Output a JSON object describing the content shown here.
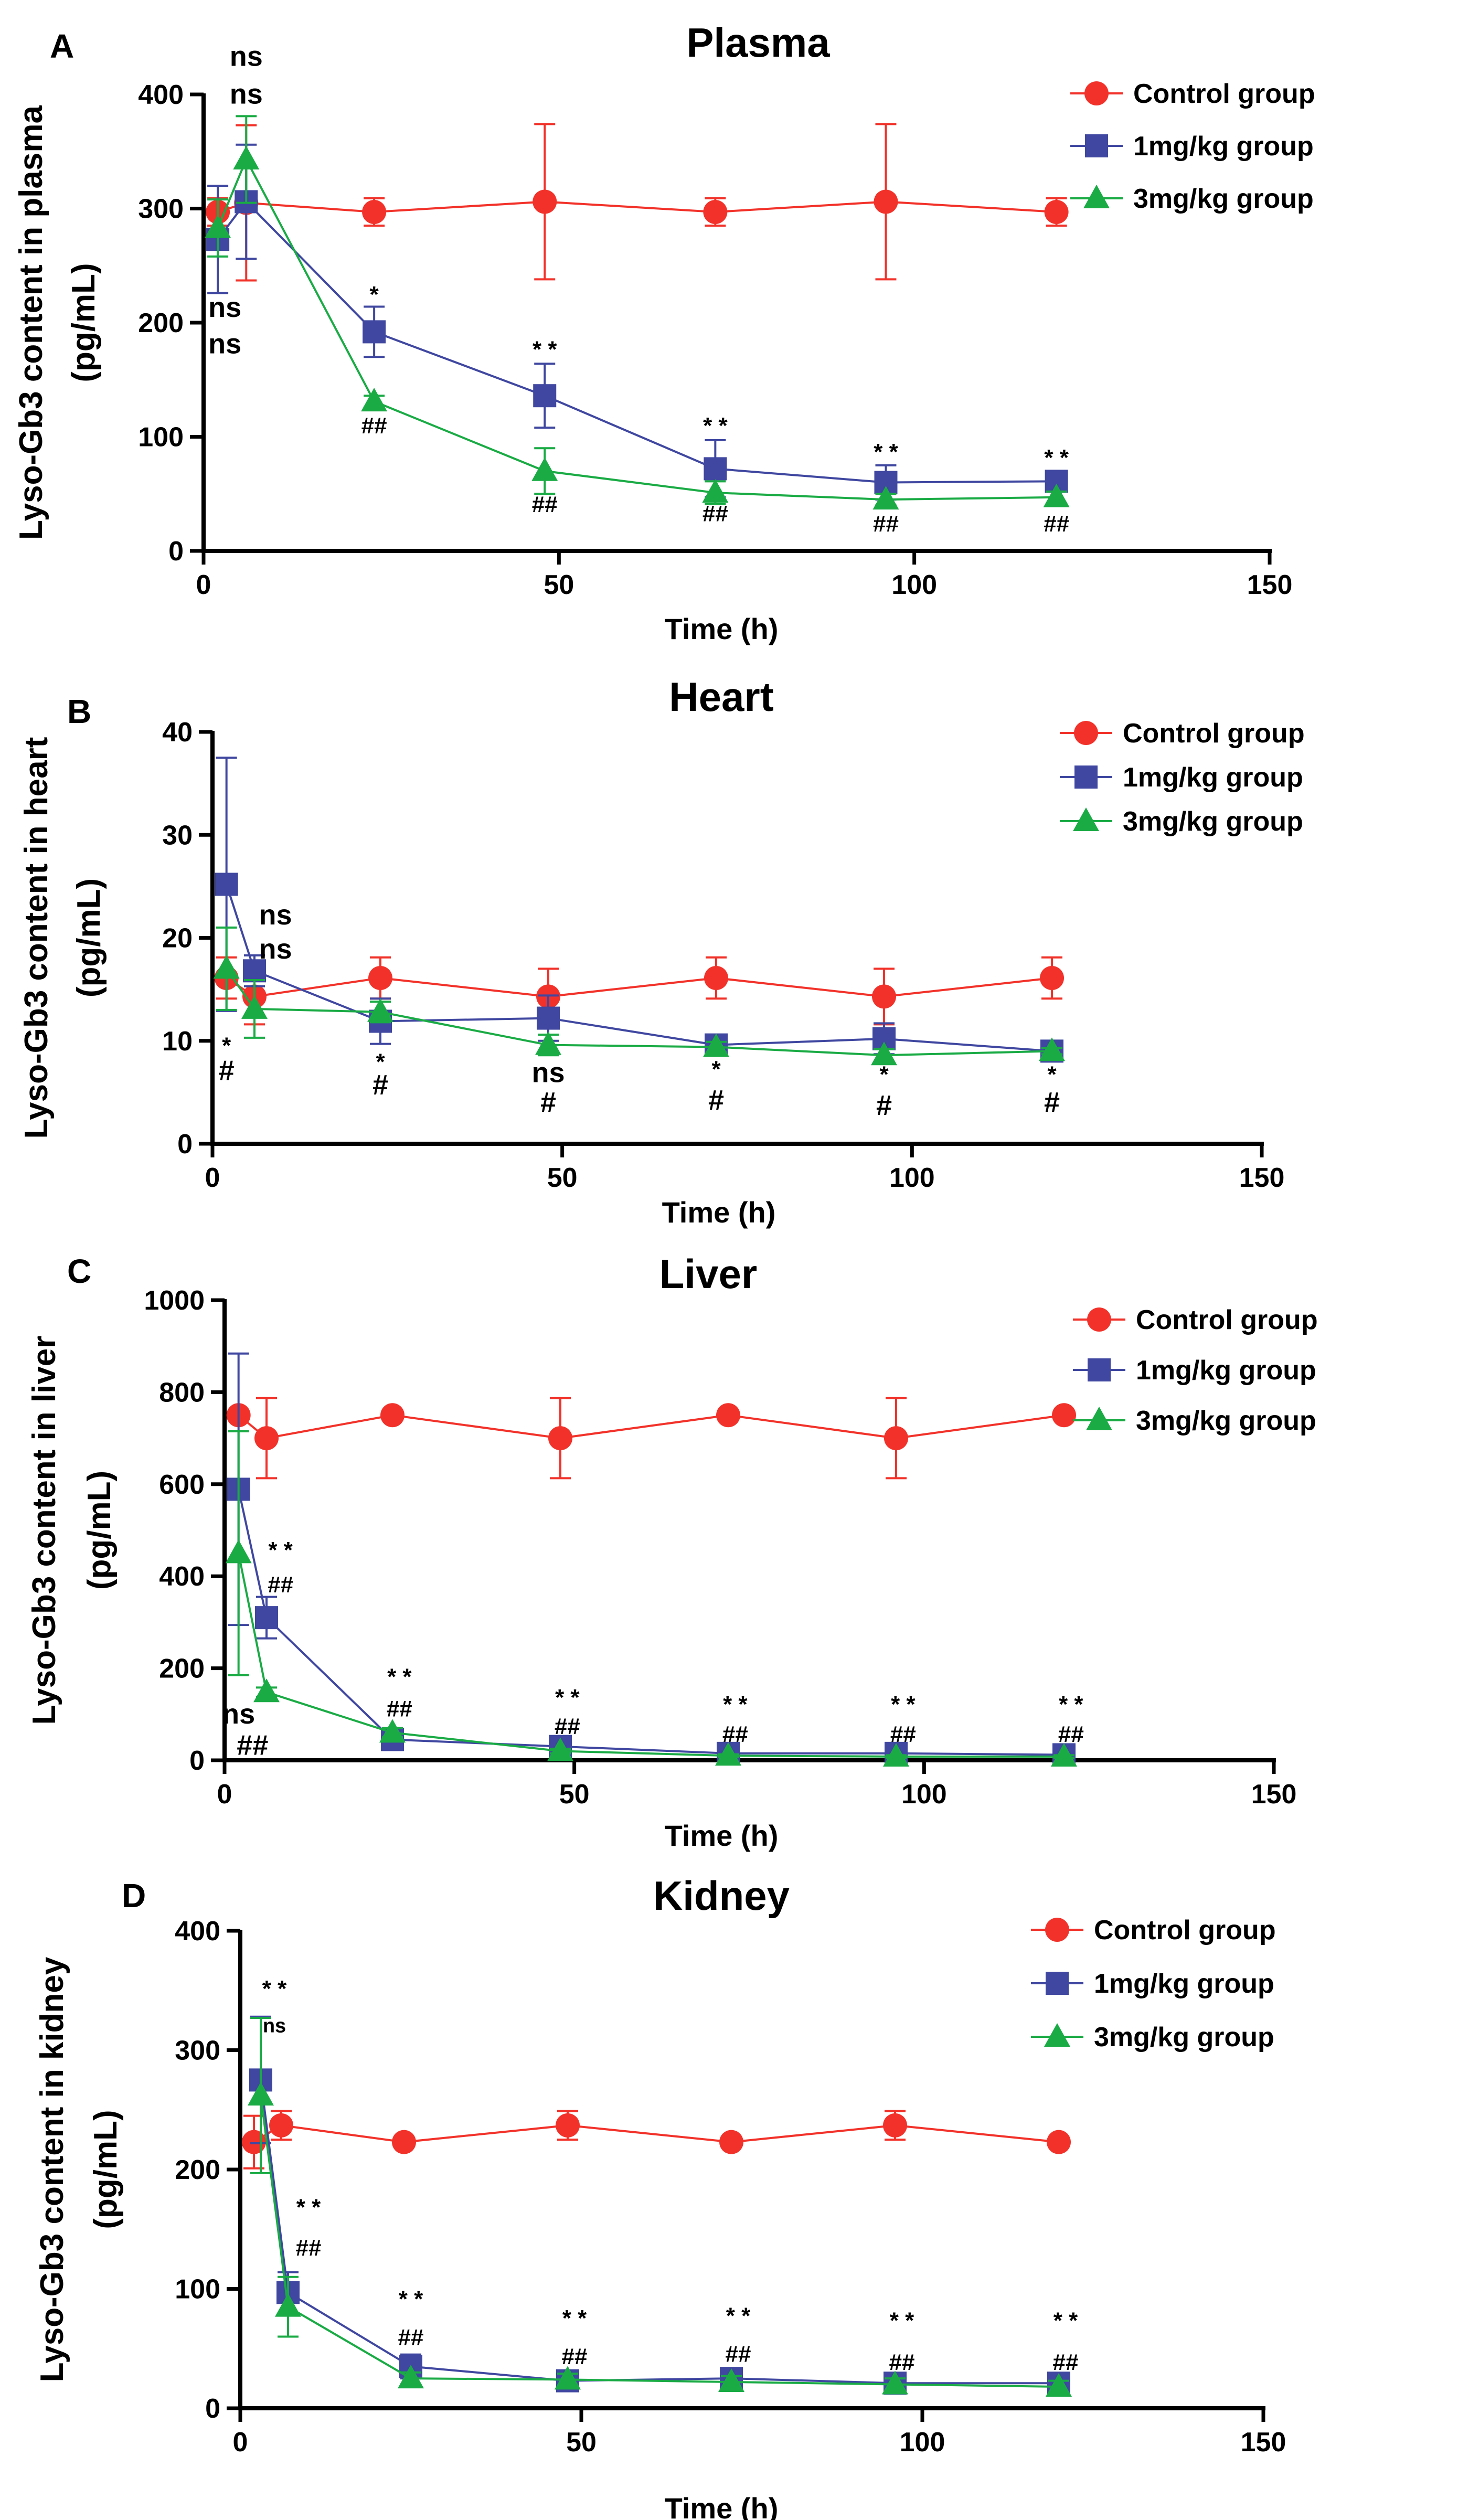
{
  "colors": {
    "control": "#f2322a",
    "dose1": "#3f47a0",
    "dose3": "#1aab45",
    "annot_dose1": "#2e2a6e",
    "annot_dose3": "#13a044",
    "axis": "#000000"
  },
  "legend_labels": [
    "Control group",
    "1mg/kg group",
    "3mg/kg group"
  ],
  "chart_data": [
    {
      "type": "line",
      "panel": "A",
      "title": "Plasma",
      "xlabel": "Time (h)",
      "ylabel": [
        "Lyso-Gb3 content in plasma",
        "(pg/mL)"
      ],
      "xlim": [
        0,
        150
      ],
      "ylim": [
        0,
        400
      ],
      "xticks": [
        0,
        50,
        100,
        150
      ],
      "yticks": [
        0,
        100,
        200,
        300,
        400
      ],
      "legend_position": "top-right",
      "series": [
        {
          "name": "Control group",
          "marker": "circle",
          "x": [
            2,
            6,
            24,
            48,
            72,
            96,
            120
          ],
          "y": [
            297,
            305,
            297,
            306,
            297,
            306,
            297
          ],
          "err": [
            12,
            68,
            12,
            68,
            12,
            68,
            12
          ]
        },
        {
          "name": "1mg/kg group",
          "marker": "square",
          "x": [
            2,
            6,
            24,
            48,
            72,
            96,
            120
          ],
          "y": [
            273,
            306,
            192,
            136,
            72,
            60,
            61
          ],
          "err": [
            47,
            50,
            22,
            28,
            25,
            15,
            5
          ]
        },
        {
          "name": "3mg/kg group",
          "marker": "triangle",
          "x": [
            2,
            6,
            24,
            48,
            72,
            96,
            120
          ],
          "y": [
            283,
            343,
            131,
            70,
            51,
            45,
            47
          ],
          "err": [
            25,
            38,
            5,
            20,
            10,
            5,
            5
          ]
        }
      ],
      "annotations": [
        {
          "text": "ns",
          "series": "1mg/kg group",
          "x": 6,
          "y": 425,
          "size": "large"
        },
        {
          "text": "ns",
          "series": "3mg/kg group",
          "x": 6,
          "y": 392,
          "size": "large"
        },
        {
          "text": "ns",
          "series": "1mg/kg group",
          "x": 3,
          "y": 205,
          "size": "large"
        },
        {
          "text": "ns",
          "series": "3mg/kg group",
          "x": 3,
          "y": 173,
          "size": "large"
        },
        {
          "text": "*",
          "series": "1mg/kg group",
          "x": 24,
          "y": 218,
          "size": "small"
        },
        {
          "text": "##",
          "series": "3mg/kg group",
          "x": 24,
          "y": 103,
          "size": "small"
        },
        {
          "text": "* *",
          "series": "1mg/kg group",
          "x": 48,
          "y": 170,
          "size": "small"
        },
        {
          "text": "##",
          "series": "3mg/kg group",
          "x": 48,
          "y": 34,
          "size": "small"
        },
        {
          "text": "* *",
          "series": "1mg/kg group",
          "x": 72,
          "y": 103,
          "size": "small"
        },
        {
          "text": "##",
          "series": "3mg/kg group",
          "x": 72,
          "y": 26,
          "size": "small"
        },
        {
          "text": "* *",
          "series": "1mg/kg group",
          "x": 96,
          "y": 80,
          "size": "small"
        },
        {
          "text": "##",
          "series": "3mg/kg group",
          "x": 96,
          "y": 17,
          "size": "small"
        },
        {
          "text": "* *",
          "series": "1mg/kg group",
          "x": 120,
          "y": 75,
          "size": "small"
        },
        {
          "text": "##",
          "series": "3mg/kg group",
          "x": 120,
          "y": 17,
          "size": "small"
        }
      ]
    },
    {
      "type": "line",
      "panel": "B",
      "title": "Heart",
      "xlabel": "Time (h)",
      "ylabel": [
        "Lyso-Gb3 content in heart",
        "(pg/mL)"
      ],
      "xlim": [
        0,
        150
      ],
      "ylim": [
        0,
        40
      ],
      "xticks": [
        0,
        50,
        100,
        150
      ],
      "yticks": [
        0,
        10,
        20,
        30,
        40
      ],
      "legend_position": "top-right",
      "series": [
        {
          "name": "Control group",
          "marker": "circle",
          "x": [
            2,
            6,
            24,
            48,
            72,
            96,
            120
          ],
          "y": [
            16.1,
            14.3,
            16.1,
            14.3,
            16.1,
            14.3,
            16.1
          ],
          "err": [
            2.0,
            2.7,
            2.0,
            2.7,
            2.0,
            2.7,
            2.0
          ]
        },
        {
          "name": "1mg/kg group",
          "marker": "square",
          "x": [
            2,
            6,
            24,
            48,
            72,
            96,
            120
          ],
          "y": [
            25.2,
            16.8,
            11.9,
            12.2,
            9.6,
            10.2,
            9.0
          ],
          "err": [
            12.3,
            1.5,
            2.2,
            2.2,
            0.6,
            1.5,
            0.3
          ]
        },
        {
          "name": "3mg/kg group",
          "marker": "triangle",
          "x": [
            2,
            6,
            24,
            48,
            72,
            96,
            120
          ],
          "y": [
            17.0,
            13.1,
            12.8,
            9.6,
            9.4,
            8.6,
            9.0
          ],
          "err": [
            4.0,
            2.8,
            1.0,
            1.0,
            0.5,
            0.6,
            0.3
          ]
        }
      ],
      "annotations": [
        {
          "text": "ns",
          "series": "1mg/kg group",
          "x": 9,
          "y": 21.3,
          "size": "large"
        },
        {
          "text": "ns",
          "series": "3mg/kg group",
          "x": 9,
          "y": 18.0,
          "size": "large"
        },
        {
          "text": "*",
          "series": "1mg/kg group",
          "x": 2,
          "y": 8.8,
          "size": "small"
        },
        {
          "text": "#",
          "series": "3mg/kg group",
          "x": 2,
          "y": 6.2,
          "size": "large"
        },
        {
          "text": "*",
          "series": "1mg/kg group",
          "x": 24,
          "y": 7.2,
          "size": "small"
        },
        {
          "text": "#",
          "series": "3mg/kg group",
          "x": 24,
          "y": 4.8,
          "size": "large"
        },
        {
          "text": "ns",
          "series": "1mg/kg group",
          "x": 48,
          "y": 6.0,
          "size": "large"
        },
        {
          "text": "#",
          "series": "3mg/kg group",
          "x": 48,
          "y": 3.1,
          "size": "large"
        },
        {
          "text": "*",
          "series": "1mg/kg group",
          "x": 72,
          "y": 6.5,
          "size": "small"
        },
        {
          "text": "#",
          "series": "3mg/kg group",
          "x": 72,
          "y": 3.3,
          "size": "large"
        },
        {
          "text": "*",
          "series": "1mg/kg group",
          "x": 96,
          "y": 6.0,
          "size": "small"
        },
        {
          "text": "#",
          "series": "3mg/kg group",
          "x": 96,
          "y": 2.8,
          "size": "large"
        },
        {
          "text": "*",
          "series": "1mg/kg group",
          "x": 120,
          "y": 6.0,
          "size": "small"
        },
        {
          "text": "#",
          "series": "3mg/kg group",
          "x": 120,
          "y": 3.1,
          "size": "large"
        }
      ]
    },
    {
      "type": "line",
      "panel": "C",
      "title": "Liver",
      "xlabel": "Time (h)",
      "ylabel": [
        "Lyso-Gb3 content in liver",
        "(pg/mL)"
      ],
      "xlim": [
        0,
        150
      ],
      "ylim": [
        0,
        1000
      ],
      "xticks": [
        0,
        50,
        100,
        150
      ],
      "yticks": [
        0,
        200,
        400,
        600,
        800,
        1000
      ],
      "legend_position": "top-right",
      "series": [
        {
          "name": "Control group",
          "marker": "circle",
          "x": [
            2,
            6,
            24,
            48,
            72,
            96,
            120
          ],
          "y": [
            750,
            700,
            750,
            700,
            750,
            700,
            750
          ],
          "err": [
            0,
            87,
            0,
            87,
            0,
            87,
            0
          ]
        },
        {
          "name": "1mg/kg group",
          "marker": "square",
          "x": [
            2,
            6,
            24,
            48,
            72,
            96,
            120
          ],
          "y": [
            589,
            310,
            45,
            30,
            15,
            15,
            12
          ],
          "err": [
            295,
            45,
            12,
            10,
            5,
            5,
            5
          ]
        },
        {
          "name": "3mg/kg group",
          "marker": "triangle",
          "x": [
            2,
            6,
            24,
            48,
            72,
            96,
            120
          ],
          "y": [
            450,
            148,
            60,
            20,
            10,
            8,
            8
          ],
          "err": [
            265,
            10,
            10,
            5,
            3,
            3,
            3
          ]
        }
      ],
      "annotations": [
        {
          "text": "* *",
          "series": "1mg/kg group",
          "x": 8,
          "y": 440,
          "size": "small"
        },
        {
          "text": "##",
          "series": "3mg/kg group",
          "x": 8,
          "y": 365,
          "size": "small"
        },
        {
          "text": "ns",
          "series": "1mg/kg group",
          "x": 2,
          "y": 80,
          "size": "large"
        },
        {
          "text": "##",
          "series": "3mg/kg group",
          "x": 4,
          "y": 12,
          "size": "large"
        },
        {
          "text": "* *",
          "series": "1mg/kg group",
          "x": 25,
          "y": 165,
          "size": "small"
        },
        {
          "text": "##",
          "series": "3mg/kg group",
          "x": 25,
          "y": 95,
          "size": "small"
        },
        {
          "text": "* *",
          "series": "1mg/kg group",
          "x": 49,
          "y": 120,
          "size": "small"
        },
        {
          "text": "##",
          "series": "3mg/kg group",
          "x": 49,
          "y": 57,
          "size": "small"
        },
        {
          "text": "* *",
          "series": "1mg/kg group",
          "x": 73,
          "y": 105,
          "size": "small"
        },
        {
          "text": "##",
          "series": "3mg/kg group",
          "x": 73,
          "y": 40,
          "size": "small"
        },
        {
          "text": "* *",
          "series": "1mg/kg group",
          "x": 97,
          "y": 105,
          "size": "small"
        },
        {
          "text": "##",
          "series": "3mg/kg group",
          "x": 97,
          "y": 40,
          "size": "small"
        },
        {
          "text": "* *",
          "series": "1mg/kg group",
          "x": 121,
          "y": 105,
          "size": "small"
        },
        {
          "text": "##",
          "series": "3mg/kg group",
          "x": 121,
          "y": 40,
          "size": "small"
        }
      ]
    },
    {
      "type": "line",
      "panel": "D",
      "title": "Kidney",
      "xlabel": "Time (h)",
      "ylabel": [
        "Lyso-Gb3 content in kidney",
        "(pg/mL)"
      ],
      "xlim": [
        0,
        150
      ],
      "ylim": [
        0,
        400
      ],
      "xticks": [
        0,
        50,
        100,
        150
      ],
      "yticks": [
        0,
        100,
        200,
        300,
        400
      ],
      "legend_position": "top-right",
      "series": [
        {
          "name": "Control group",
          "marker": "circle",
          "x": [
            2,
            6,
            24,
            48,
            72,
            96,
            120
          ],
          "y": [
            223,
            237,
            223,
            237,
            223,
            237,
            223
          ],
          "err": [
            22,
            12,
            0,
            12,
            0,
            12,
            0
          ]
        },
        {
          "name": "1mg/kg group",
          "marker": "square",
          "x": [
            3,
            7,
            25,
            48,
            72,
            96,
            120
          ],
          "y": [
            275,
            97,
            35,
            23,
            25,
            21,
            21
          ],
          "err": [
            53,
            17,
            10,
            5,
            5,
            5,
            5
          ]
        },
        {
          "name": "3mg/kg group",
          "marker": "triangle",
          "x": [
            3,
            7,
            25,
            48,
            72,
            96,
            120
          ],
          "y": [
            262,
            85,
            25,
            24,
            22,
            20,
            18
          ],
          "err": [
            65,
            25,
            5,
            5,
            5,
            5,
            5
          ]
        }
      ],
      "annotations": [
        {
          "text": "* *",
          "series": "1mg/kg group",
          "x": 5,
          "y": 345,
          "size": "small"
        },
        {
          "text": "ns",
          "series": "3mg/kg group",
          "x": 5,
          "y": 315,
          "size": "tiny"
        },
        {
          "text": "* *",
          "series": "1mg/kg group",
          "x": 10,
          "y": 162,
          "size": "small"
        },
        {
          "text": "##",
          "series": "3mg/kg group",
          "x": 10,
          "y": 128,
          "size": "small"
        },
        {
          "text": "* *",
          "series": "1mg/kg group",
          "x": 25,
          "y": 85,
          "size": "small"
        },
        {
          "text": "##",
          "series": "3mg/kg group",
          "x": 25,
          "y": 53,
          "size": "small"
        },
        {
          "text": "* *",
          "series": "1mg/kg group",
          "x": 49,
          "y": 69,
          "size": "small"
        },
        {
          "text": "##",
          "series": "3mg/kg group",
          "x": 49,
          "y": 37,
          "size": "small"
        },
        {
          "text": "* *",
          "series": "1mg/kg group",
          "x": 73,
          "y": 71,
          "size": "small"
        },
        {
          "text": "##",
          "series": "3mg/kg group",
          "x": 73,
          "y": 39,
          "size": "small"
        },
        {
          "text": "* *",
          "series": "1mg/kg group",
          "x": 97,
          "y": 67,
          "size": "small"
        },
        {
          "text": "##",
          "series": "3mg/kg group",
          "x": 97,
          "y": 32,
          "size": "small"
        },
        {
          "text": "* *",
          "series": "1mg/kg group",
          "x": 121,
          "y": 67,
          "size": "small"
        },
        {
          "text": "##",
          "series": "3mg/kg group",
          "x": 121,
          "y": 32,
          "size": "small"
        }
      ]
    }
  ]
}
